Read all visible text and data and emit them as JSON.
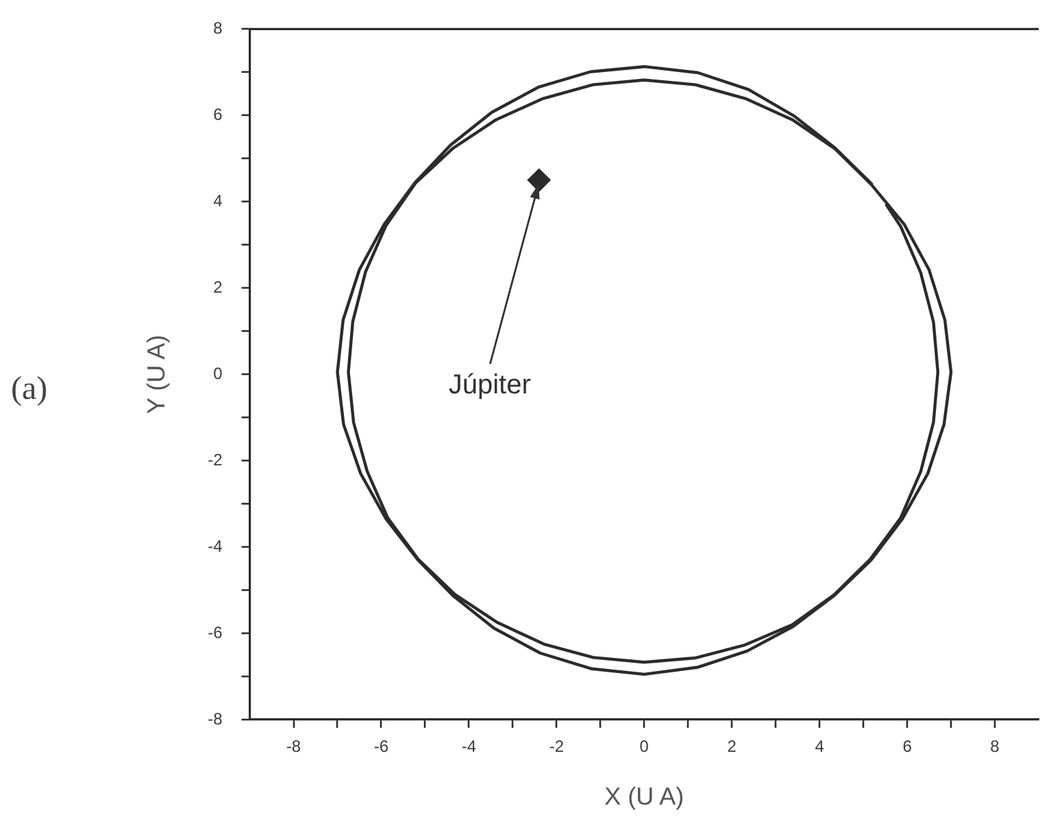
{
  "chart_data": {
    "type": "line",
    "xlabel": "X (U A)",
    "ylabel": "Y (U A)",
    "xlim": [
      -9,
      9
    ],
    "ylim": [
      -8,
      8
    ],
    "xticks": [
      -8,
      {
        "value": -7,
        "label": null
      },
      -6,
      {
        "value": -5,
        "label": null
      },
      -4,
      {
        "value": -3,
        "label": null
      },
      -2,
      {
        "value": -1,
        "label": null
      },
      0,
      {
        "value": 1,
        "label": null
      },
      2,
      {
        "value": 3,
        "label": null
      },
      4,
      {
        "value": 5,
        "label": null
      },
      6,
      {
        "value": 7,
        "label": null
      },
      8
    ],
    "yticks": [
      -8,
      {
        "value": -7,
        "label": null
      },
      -6,
      {
        "value": -5,
        "label": null
      },
      -4,
      {
        "value": -3,
        "label": null
      },
      -2,
      {
        "value": -1,
        "label": null
      },
      0,
      {
        "value": 1,
        "label": null
      },
      2,
      {
        "value": 3,
        "label": null
      },
      4,
      {
        "value": 5,
        "label": null
      },
      6,
      {
        "value": 7,
        "label": null
      },
      8
    ],
    "annotations": [
      "(a)",
      "Júpiter"
    ],
    "series": [
      {
        "marker": "none",
        "color": "#2b2b2b",
        "x": [
          5.19,
          4.36,
          3.43,
          2.38,
          1.22,
          0,
          -1.23,
          -2.4,
          -3.48,
          -4.42,
          -5.23,
          -5.93,
          -6.5,
          -6.87,
          -7.0,
          -6.86,
          -6.47,
          -5.89,
          -5.17,
          -4.35,
          -3.43,
          -2.37,
          -1.21,
          0,
          1.21,
          2.35,
          3.4,
          4.34,
          5.18,
          5.89,
          6.47,
          6.84,
          7.0,
          6.86,
          6.5,
          5.93,
          5.18,
          4.35,
          3.38,
          2.31,
          1.17,
          0,
          -1.17,
          -2.31,
          -3.38,
          -4.36,
          -5.22,
          -5.89,
          -6.36,
          -6.65,
          -6.75,
          -6.63,
          -6.32,
          -5.85,
          -5.16,
          -4.32,
          -3.35,
          -2.29,
          -1.16,
          0,
          1.17,
          2.3,
          3.38,
          4.33,
          5.16,
          5.85,
          6.31,
          6.6,
          6.7,
          6.6,
          6.31,
          5.85,
          5.53
        ],
        "values": [
          4.41,
          5.24,
          5.98,
          6.6,
          6.99,
          7.13,
          7.01,
          6.66,
          6.07,
          5.31,
          4.44,
          3.48,
          2.42,
          1.26,
          0.05,
          -1.16,
          -2.3,
          -3.35,
          -4.29,
          -5.14,
          -5.88,
          -6.46,
          -6.82,
          -6.95,
          -6.79,
          -6.41,
          -5.84,
          -5.12,
          -4.3,
          -3.35,
          -2.3,
          -1.16,
          0.05,
          1.26,
          2.42,
          3.48,
          4.4,
          5.23,
          5.9,
          6.39,
          6.71,
          6.82,
          6.71,
          6.39,
          5.9,
          5.24,
          4.43,
          3.45,
          2.37,
          1.22,
          0.05,
          -1.12,
          -2.25,
          -3.33,
          -4.28,
          -5.1,
          -5.75,
          -6.25,
          -6.56,
          -6.67,
          -6.57,
          -6.27,
          -5.8,
          -5.11,
          -4.28,
          -3.33,
          -2.25,
          -1.11,
          0.05,
          1.21,
          2.35,
          3.43,
          3.92
        ]
      },
      {
        "type": "scatter",
        "marker": "diamond",
        "color": "#2b2b2b",
        "x": [
          -2.4
        ],
        "values": [
          4.5
        ]
      }
    ]
  }
}
